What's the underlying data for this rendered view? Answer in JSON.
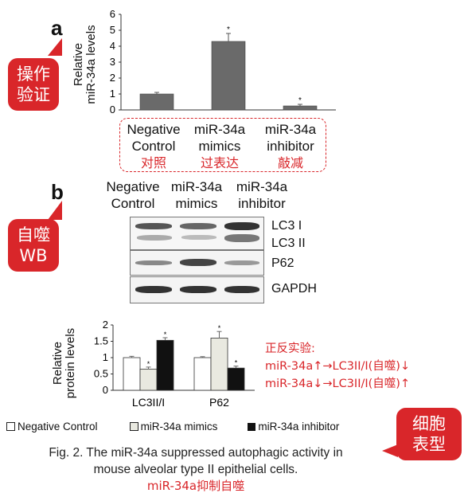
{
  "panel_a": {
    "letter": "a",
    "bubble_line1": "操作",
    "bubble_line2": "验证",
    "ylabel_line1": "Relative",
    "ylabel_line2": "miR-34a levels",
    "chart_data": {
      "type": "bar",
      "categories": [
        "Negative Control",
        "miR-34a mimics",
        "miR-34a inhibitor"
      ],
      "values": [
        1.0,
        4.3,
        0.25
      ],
      "errors": [
        0.1,
        0.5,
        0.1
      ],
      "significance": [
        "",
        "*",
        "*"
      ],
      "ylim": [
        0,
        6
      ],
      "yticks": [
        "0",
        "1",
        "2",
        "3",
        "4",
        "5",
        "6"
      ],
      "color": "#6a6a6a"
    },
    "labels": [
      {
        "line1": "Negative",
        "line2": "Control",
        "cn": "对照"
      },
      {
        "line1": "miR-34a",
        "line2": "mimics",
        "cn": "过表达"
      },
      {
        "line1": "miR-34a",
        "line2": "inhibitor",
        "cn": "敲减"
      }
    ]
  },
  "panel_b": {
    "letter": "b",
    "bubble_line1": "自噬",
    "bubble_line2": "WB",
    "lanes": [
      {
        "line1": "Negative",
        "line2": "Control"
      },
      {
        "line1": "miR-34a",
        "line2": "mimics"
      },
      {
        "line1": "miR-34a",
        "line2": "inhibitor"
      }
    ],
    "blot_labels": {
      "lc3i": "LC3 I",
      "lc3ii": "LC3 II",
      "p62": "P62",
      "gapdh": "GAPDH"
    },
    "ylabel_line1": "Relative",
    "ylabel_line2": "protein levels",
    "chart_data": {
      "type": "bar",
      "categories": [
        "LC3II/I",
        "P62"
      ],
      "series": [
        {
          "name": "Negative Control",
          "values": [
            1.0,
            1.0
          ],
          "errors": [
            0.04,
            0.03
          ],
          "color": "#ffffff"
        },
        {
          "name": "miR-34a mimics",
          "values": [
            0.65,
            1.6
          ],
          "errors": [
            0.06,
            0.2
          ],
          "color": "#e9e9e0"
        },
        {
          "name": "miR-34a inhibitor",
          "values": [
            1.53,
            0.68
          ],
          "errors": [
            0.08,
            0.06
          ],
          "color": "#111111"
        }
      ],
      "significance": [
        [
          "",
          "*",
          "*"
        ],
        [
          "",
          "*",
          "*"
        ]
      ],
      "ylim": [
        0,
        2
      ],
      "yticks": [
        "0",
        "0.5",
        "1",
        "1.5",
        "2"
      ]
    },
    "note": {
      "title": "正反实验:",
      "line1": "miR-34a↑→LC3II/I(自噬)↓",
      "line2": "miR-34a↓→LC3II/I(自噬)↑"
    },
    "legend": [
      "Negative Control",
      "miR-34a mimics",
      "miR-34a inhibitor"
    ]
  },
  "phenotype_bubble": {
    "line1": "细胞",
    "line2": "表型"
  },
  "caption": {
    "line1": "Fig. 2. The miR-34a suppressed autophagic activity in",
    "line2": "mouse alveolar type II epithelial cells.",
    "cn": "miR-34a抑制自噬"
  }
}
